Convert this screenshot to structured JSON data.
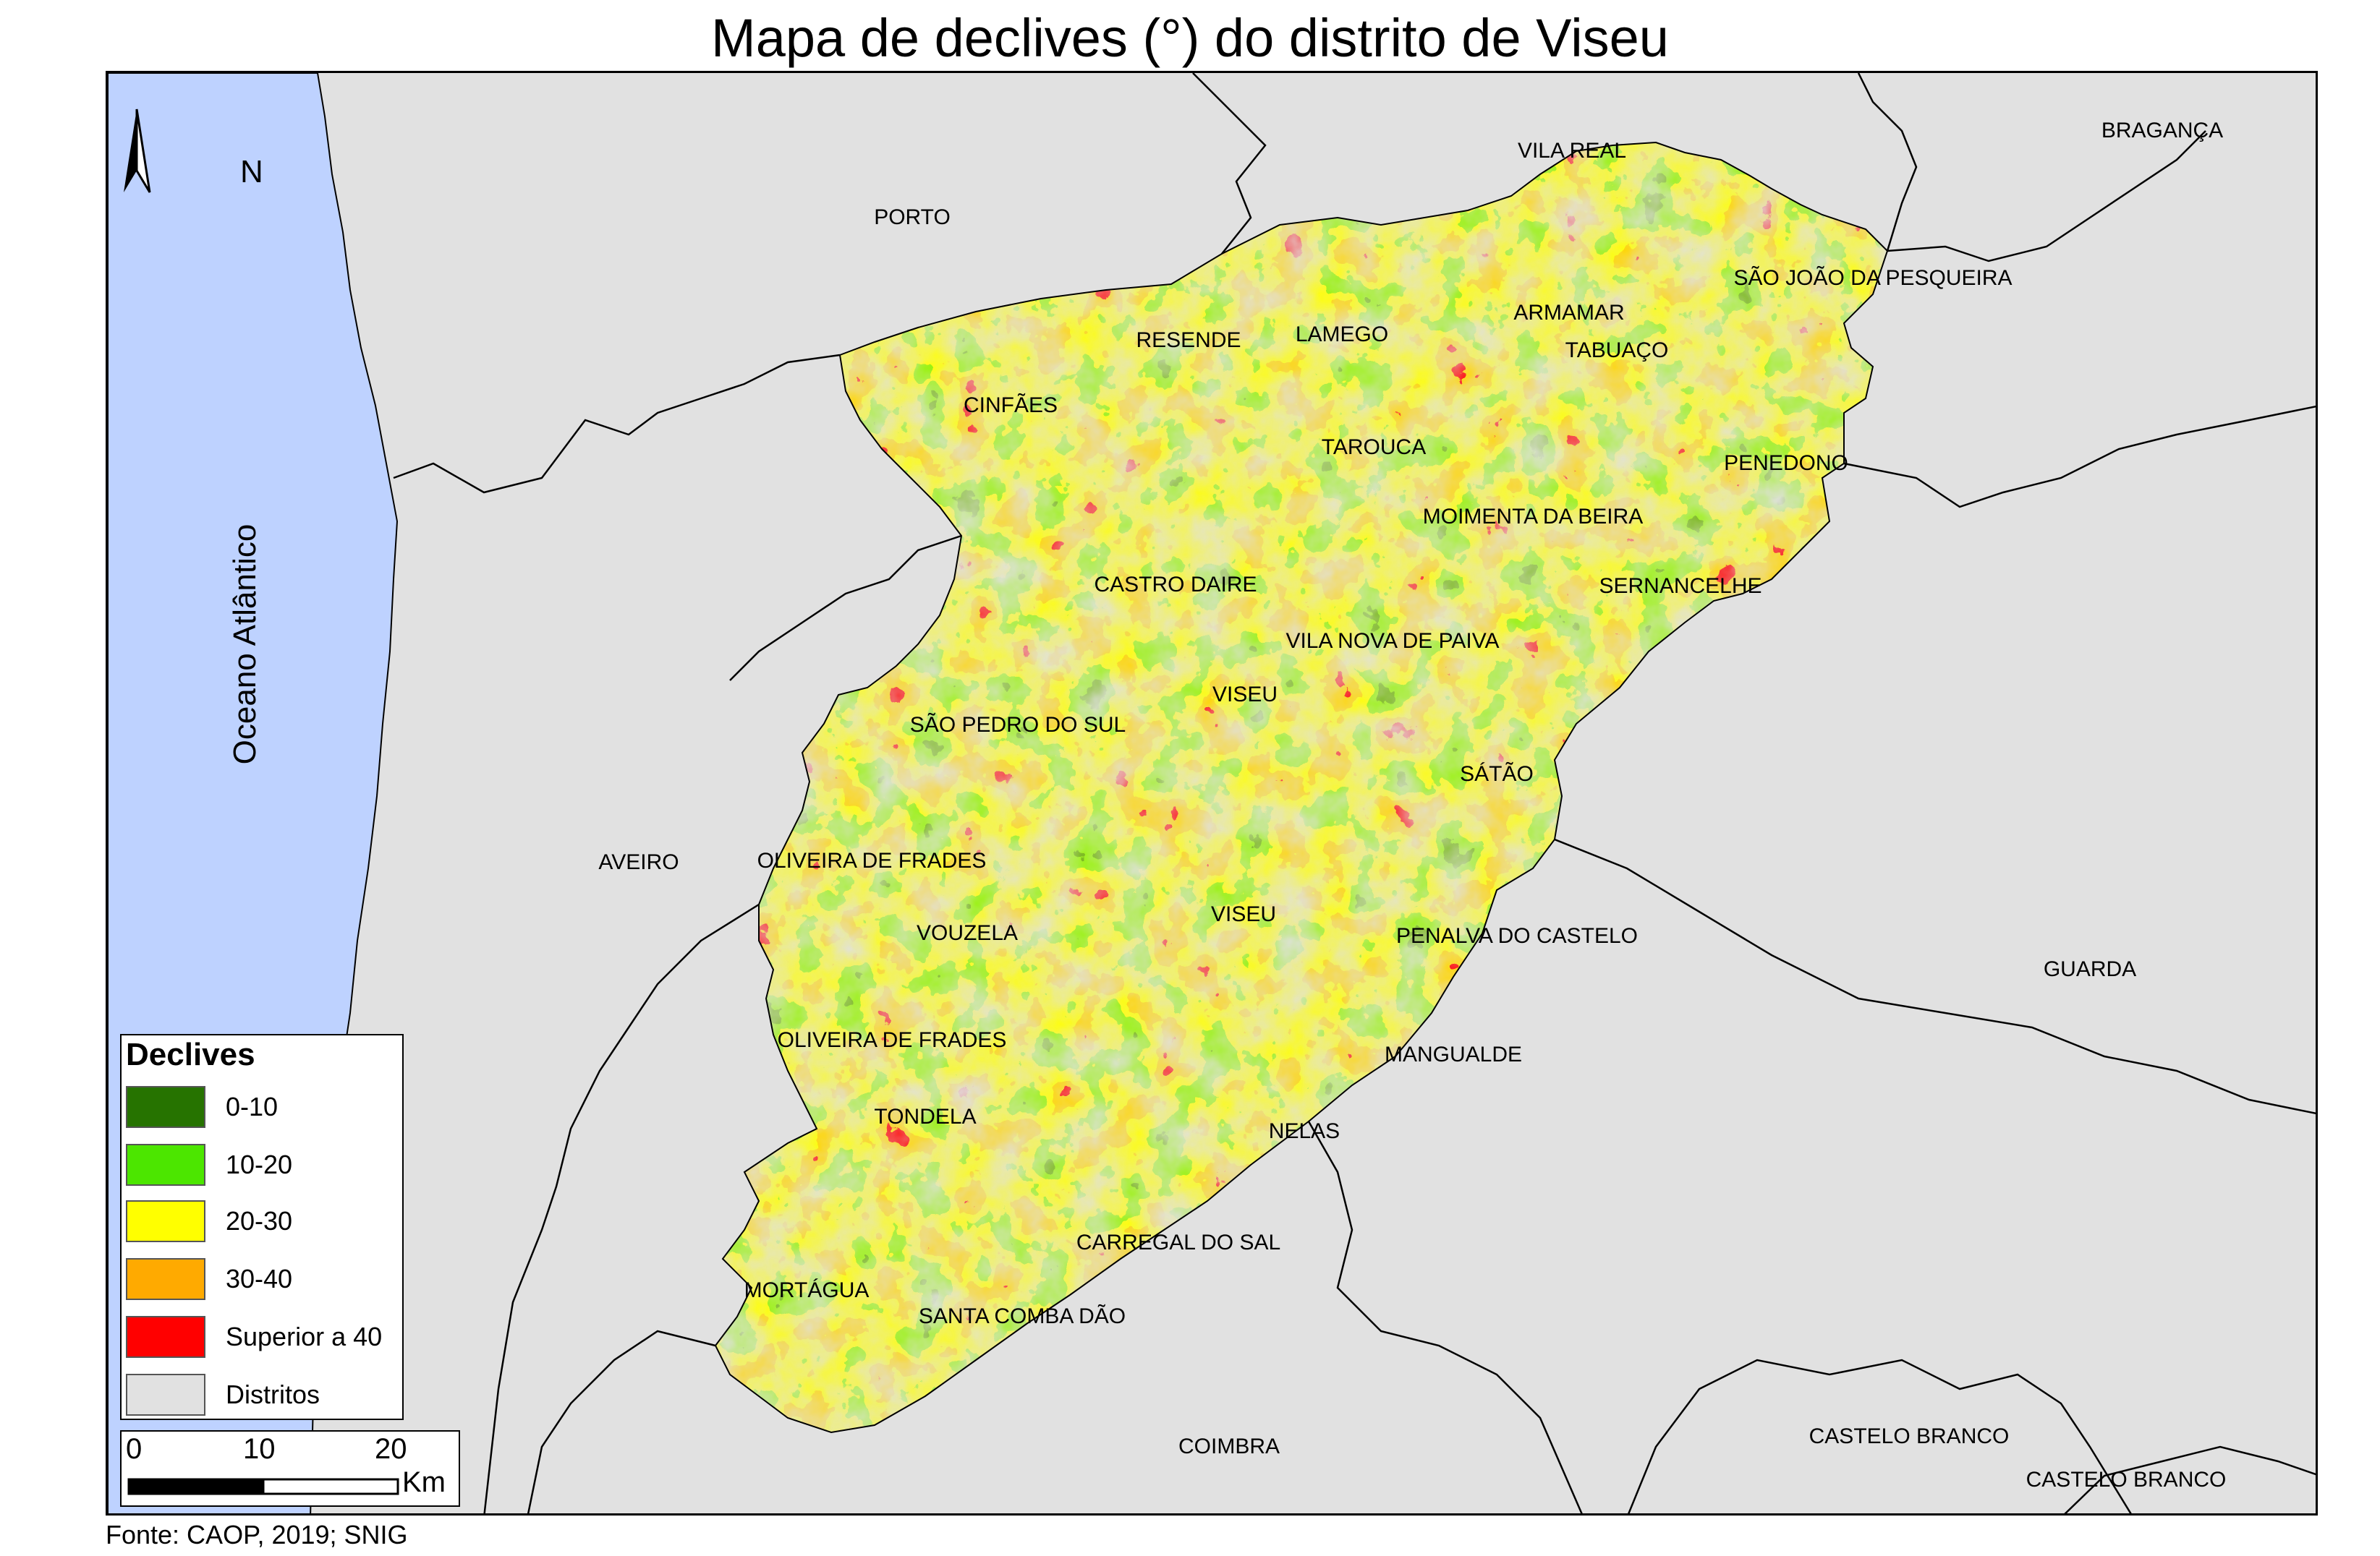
{
  "title": "Mapa de declives (°) do distrito de Viseu",
  "ocean_label": "Oceano Atlântico",
  "north_letter": "N",
  "legend": {
    "title": "Declives",
    "items": [
      {
        "label": "0-10",
        "color": "#267300"
      },
      {
        "label": "10-20",
        "color": "#4ce600"
      },
      {
        "label": "20-30",
        "color": "#ffff00"
      },
      {
        "label": "30-40",
        "color": "#ffaa00"
      },
      {
        "label": "Superior a 40",
        "color": "#ff0000"
      },
      {
        "label": "Distritos",
        "color": "#e1e1e1"
      }
    ]
  },
  "scale": {
    "ticks": [
      "0",
      "10",
      "20"
    ],
    "unit": "Km"
  },
  "source": "Fonte: CAOP, 2019; SNIG",
  "colors": {
    "ocean": "#bed2ff",
    "land": "#e1e1e1",
    "border": "#000000"
  },
  "districts": [
    {
      "name": "PORTO"
    },
    {
      "name": "VILA REAL"
    },
    {
      "name": "BRAGANÇA"
    },
    {
      "name": "AVEIRO"
    },
    {
      "name": "GUARDA"
    },
    {
      "name": "COIMBRA"
    },
    {
      "name": "CASTELO BRANCO"
    },
    {
      "name": "CASTELO BRANCO"
    }
  ],
  "municipalities": [
    {
      "name": "SÃO JOÃO DA PESQUEIRA"
    },
    {
      "name": "ARMAMAR"
    },
    {
      "name": "LAMEGO"
    },
    {
      "name": "RESENDE"
    },
    {
      "name": "TABUAÇO"
    },
    {
      "name": "CINFÃES"
    },
    {
      "name": "TAROUCA"
    },
    {
      "name": "PENEDONO"
    },
    {
      "name": "MOIMENTA DA BEIRA"
    },
    {
      "name": "CASTRO DAIRE"
    },
    {
      "name": "SERNANCELHE"
    },
    {
      "name": "VILA NOVA DE PAIVA"
    },
    {
      "name": "VISEU"
    },
    {
      "name": "SÃO PEDRO DO SUL"
    },
    {
      "name": "SÁTÃO"
    },
    {
      "name": "OLIVEIRA DE FRADES"
    },
    {
      "name": "VISEU"
    },
    {
      "name": "VOUZELA"
    },
    {
      "name": "PENALVA DO CASTELO"
    },
    {
      "name": "OLIVEIRA DE FRADES"
    },
    {
      "name": "MANGUALDE"
    },
    {
      "name": "TONDELA"
    },
    {
      "name": "NELAS"
    },
    {
      "name": "CARREGAL DO SAL"
    },
    {
      "name": "MORTÁGUA"
    },
    {
      "name": "SANTA COMBA DÃO"
    }
  ]
}
